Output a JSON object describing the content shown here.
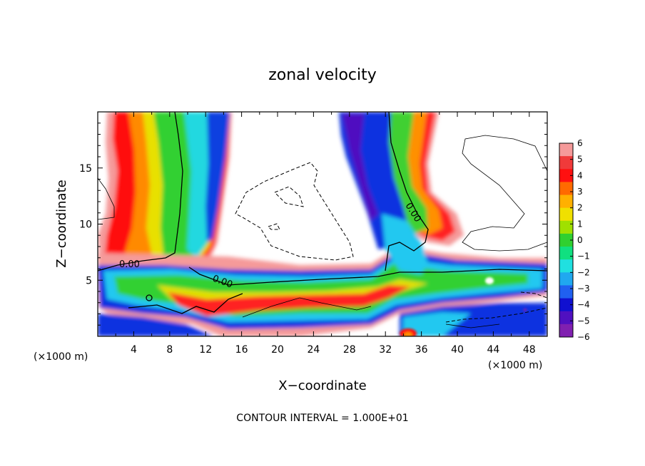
{
  "chart_data": {
    "type": "heatmap",
    "title": "zonal velocity",
    "xlabel": "X−coordinate",
    "ylabel": "Z−coordinate",
    "x_unit_label": "(×1000 m)",
    "x_unit_label_right": "(×1000 m)",
    "xlim": [
      0,
      50
    ],
    "ylim": [
      0,
      20
    ],
    "x_ticks": [
      "4",
      "8",
      "12",
      "16",
      "20",
      "24",
      "28",
      "32",
      "36",
      "40",
      "44",
      "48"
    ],
    "y_ticks": [
      "5",
      "10",
      "15"
    ],
    "colorbar": {
      "ticks": [
        "6",
        "5",
        "4",
        "3",
        "2",
        "1",
        "0",
        "−1",
        "−2",
        "−3",
        "−4",
        "−5",
        "−6"
      ],
      "colors": [
        "#f59a9a",
        "#f03a3a",
        "#ff1010",
        "#ff6a00",
        "#ffb000",
        "#f0e000",
        "#a0e000",
        "#30d030",
        "#10e080",
        "#20e0e0",
        "#20a8f0",
        "#2060f0",
        "#1010d0",
        "#5010c0",
        "#8020b0"
      ]
    },
    "contour_labels": [
      "0.00",
      "0.00",
      "0.00"
    ],
    "footer": "CONTOUR INTERVAL = 1.000E+01"
  }
}
